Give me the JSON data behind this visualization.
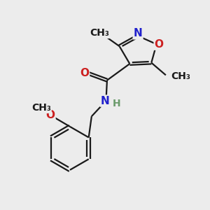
{
  "bg_color": "#ececec",
  "bond_color": "#1a1a1a",
  "N_color": "#2020cc",
  "O_color": "#cc2020",
  "H_color": "#6a9a6a",
  "line_width": 1.6,
  "font_size": 11,
  "figsize": [
    3.0,
    3.0
  ],
  "dpi": 100,
  "xlim": [
    0,
    10
  ],
  "ylim": [
    0,
    10
  ]
}
